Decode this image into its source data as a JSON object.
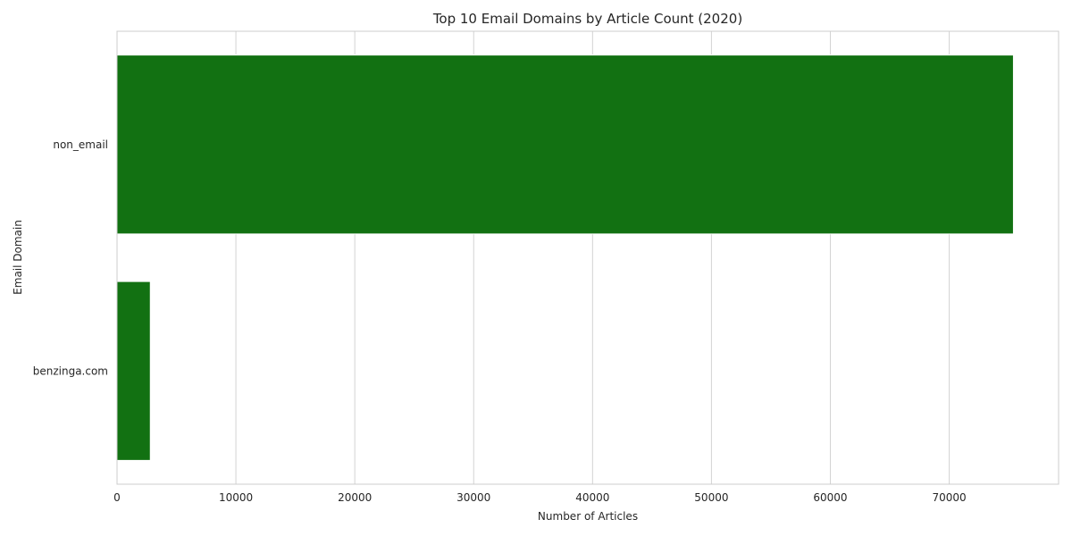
{
  "chart_data": {
    "type": "bar",
    "orientation": "horizontal",
    "title": "Top 10 Email Domains by Article Count (2020)",
    "xlabel": "Number of Articles",
    "ylabel": "Email Domain",
    "categories": [
      "non_email",
      "benzinga.com"
    ],
    "values": [
      75400,
      2800
    ],
    "xlim": [
      0,
      79200
    ],
    "xticks": [
      0,
      10000,
      20000,
      30000,
      40000,
      50000,
      60000,
      70000
    ],
    "xtick_labels": [
      "0",
      "10000",
      "20000",
      "30000",
      "40000",
      "50000",
      "60000",
      "70000"
    ],
    "grid": true,
    "colors": {
      "bar": "#127112",
      "grid": "#d3d3d3",
      "spine": "#cccccc"
    }
  }
}
